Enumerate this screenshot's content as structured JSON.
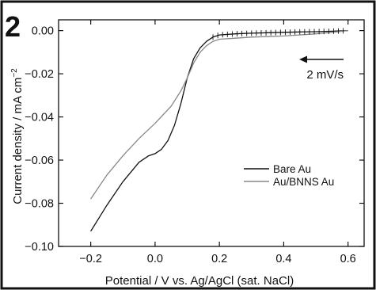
{
  "panel_label": "2",
  "chart_data": {
    "type": "line",
    "xlabel": "Potential / V vs. Ag/AgCl (sat. NaCl)",
    "ylabel": "Current density / mA cm",
    "ylabel_superscript": "−2",
    "xlim": [
      -0.3,
      0.65
    ],
    "ylim": [
      -0.1,
      0.005
    ],
    "x_ticks": [
      -0.2,
      0.0,
      0.2,
      0.4,
      0.6
    ],
    "x_tick_labels": [
      "−0.2",
      "0.0",
      "0.2",
      "0.4",
      "0.6"
    ],
    "y_ticks": [
      0.0,
      -0.02,
      -0.04,
      -0.06,
      -0.08,
      -0.1
    ],
    "y_tick_labels": [
      "0.00",
      "−0.02",
      "−0.04",
      "−0.06",
      "−0.08",
      "−0.10"
    ],
    "annotation": "2 mV/s",
    "legend_position": "right",
    "series": [
      {
        "name": "Bare Au",
        "color": "#111111",
        "x": [
          -0.2,
          -0.15,
          -0.1,
          -0.05,
          -0.02,
          0.0,
          0.02,
          0.04,
          0.06,
          0.08,
          0.1,
          0.12,
          0.14,
          0.16,
          0.18,
          0.2,
          0.25,
          0.3,
          0.35,
          0.4,
          0.45,
          0.5,
          0.55,
          0.6
        ],
        "y": [
          -0.093,
          -0.081,
          -0.07,
          -0.061,
          -0.058,
          -0.057,
          -0.055,
          -0.051,
          -0.044,
          -0.034,
          -0.022,
          -0.013,
          -0.008,
          -0.005,
          -0.003,
          -0.002,
          -0.0015,
          -0.0012,
          -0.001,
          -0.0008,
          -0.0006,
          -0.0005,
          -0.0003,
          0.0
        ]
      },
      {
        "name": "Au/BNNS Au",
        "color": "#888888",
        "x": [
          -0.2,
          -0.15,
          -0.1,
          -0.05,
          0.0,
          0.05,
          0.08,
          0.1,
          0.12,
          0.14,
          0.16,
          0.18,
          0.2,
          0.25,
          0.3,
          0.35,
          0.4,
          0.45,
          0.5,
          0.55,
          0.6
        ],
        "y": [
          -0.078,
          -0.067,
          -0.058,
          -0.05,
          -0.043,
          -0.035,
          -0.028,
          -0.022,
          -0.015,
          -0.01,
          -0.007,
          -0.005,
          -0.004,
          -0.0035,
          -0.003,
          -0.0028,
          -0.0025,
          -0.002,
          -0.0015,
          -0.0008,
          0.0
        ]
      }
    ]
  }
}
